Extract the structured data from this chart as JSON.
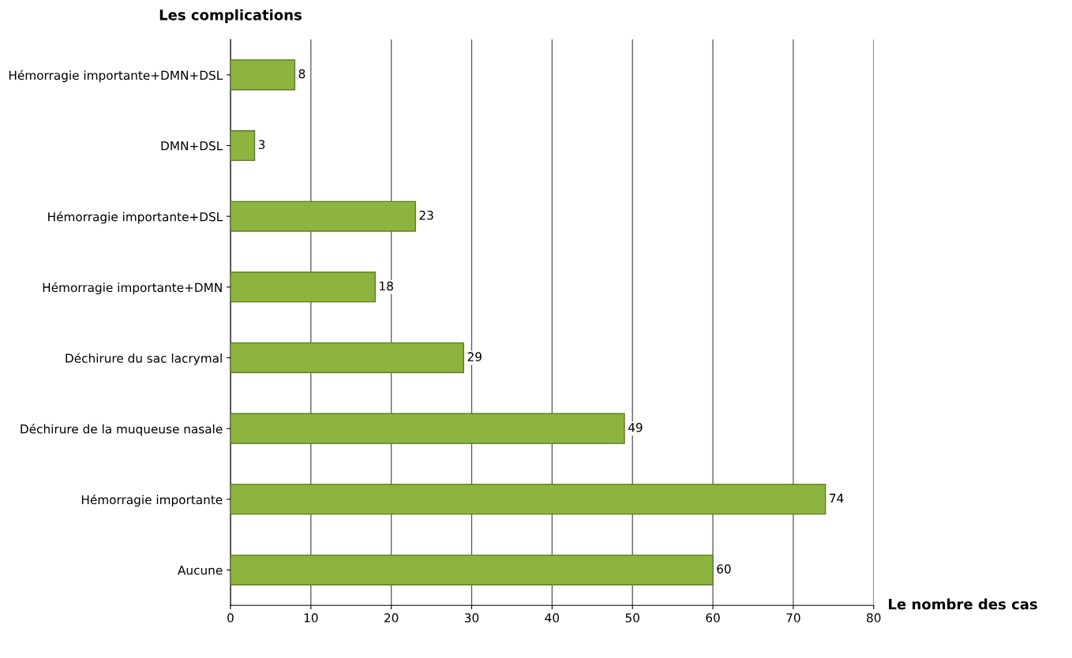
{
  "chart_data": {
    "type": "bar",
    "orientation": "horizontal",
    "ylabel": "Les complications",
    "xlabel": "Le nombre des cas",
    "categories": [
      "Hémorragie importante+DMN+DSL",
      "DMN+DSL",
      "Hémorragie importante+DSL",
      "Hémorragie importante+DMN",
      "Déchirure du sac lacrymal",
      "Déchirure de la muqueuse nasale",
      "Hémorragie importante",
      "Aucune"
    ],
    "values": [
      8,
      3,
      23,
      18,
      29,
      49,
      74,
      60
    ],
    "color": "#8db43e",
    "xlim": [
      0,
      80
    ],
    "xticks": [
      0,
      10,
      20,
      30,
      40,
      50,
      60,
      70,
      80
    ],
    "grid": "x",
    "data_labels": true
  }
}
